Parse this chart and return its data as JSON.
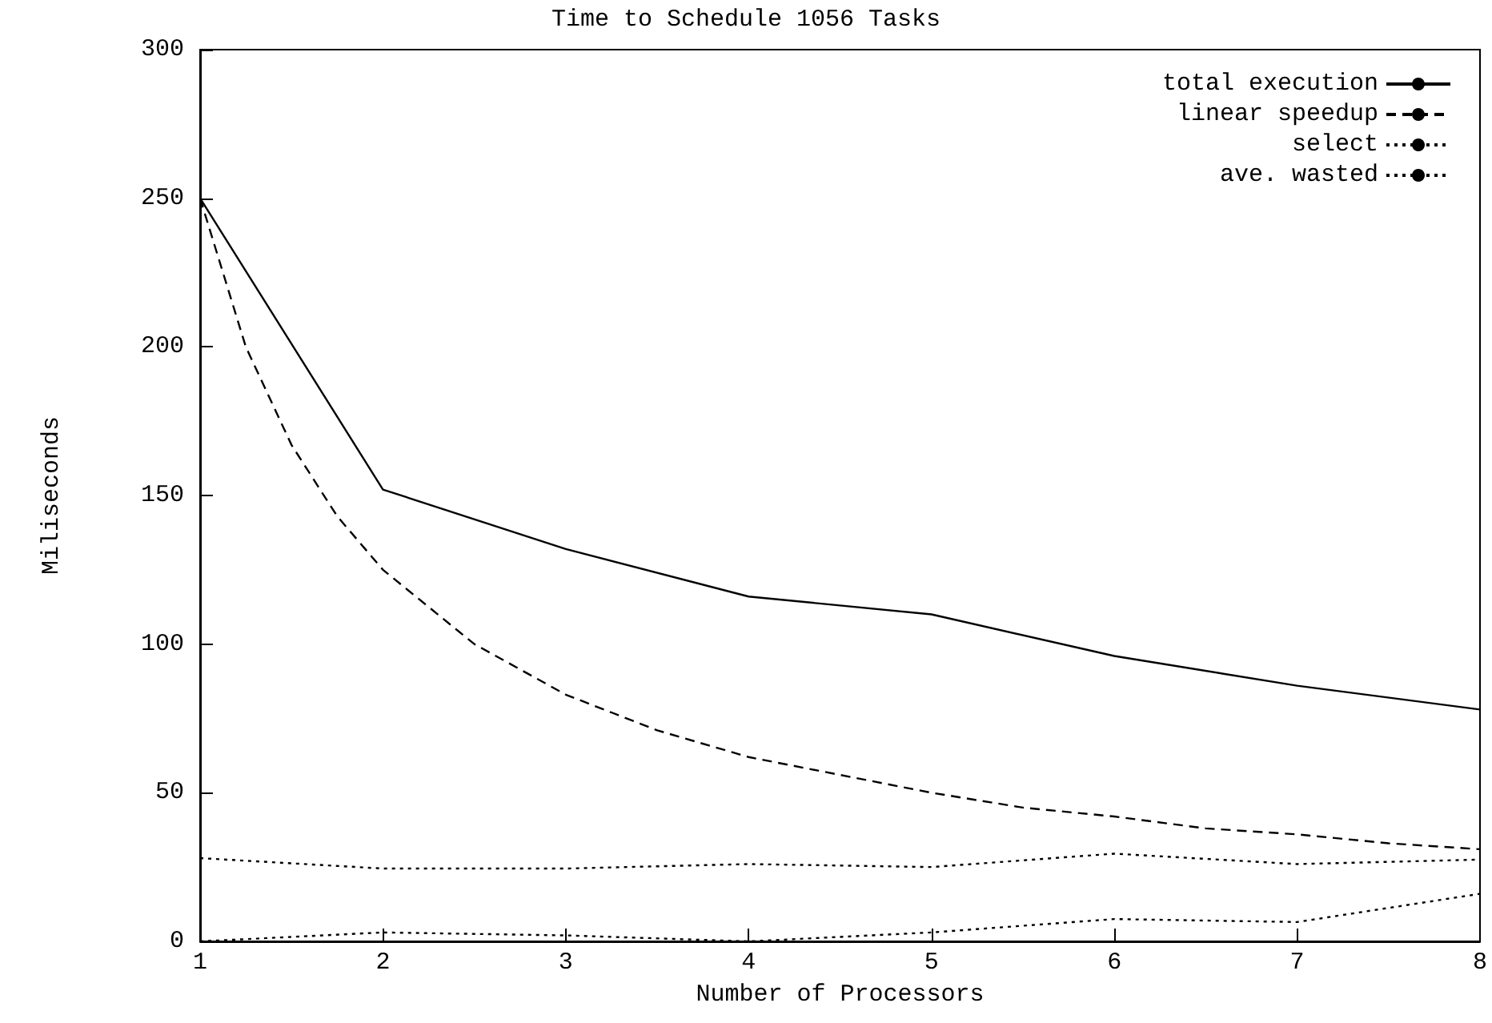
{
  "chart_data": {
    "type": "line",
    "title": "Time to Schedule 1056 Tasks",
    "xlabel": "Number of Processors",
    "ylabel": "Miliseconds",
    "x": [
      1,
      2,
      3,
      4,
      5,
      6,
      7,
      8
    ],
    "series": [
      {
        "name": "total execution",
        "color": "#000000",
        "line_style": "solid",
        "values": [
          250,
          152,
          132,
          116,
          110,
          96,
          86,
          78
        ]
      },
      {
        "name": "linear speedup",
        "color": "#000000",
        "line_style": "dashed",
        "x": [
          1,
          1.25,
          1.5,
          1.75,
          2,
          2.5,
          3,
          3.5,
          4,
          4.5,
          5,
          5.5,
          6,
          6.5,
          7,
          7.5,
          8
        ],
        "values": [
          250,
          200,
          167,
          143,
          125,
          100,
          83,
          71,
          62,
          56,
          50,
          45,
          42,
          38,
          36,
          33,
          31
        ]
      },
      {
        "name": "select",
        "color": "#000000",
        "line_style": "dotted",
        "values": [
          28,
          24.5,
          24.5,
          26,
          25,
          29.5,
          26,
          27.5
        ]
      },
      {
        "name": "ave. wasted",
        "color": "#000000",
        "line_style": "dotted",
        "values": [
          0,
          3,
          2,
          0,
          3,
          7.5,
          6.5,
          16
        ]
      }
    ],
    "xlim": [
      1,
      8
    ],
    "xticks": [
      1,
      2,
      3,
      4,
      5,
      6,
      7,
      8
    ],
    "ylim": [
      0,
      300
    ],
    "yticks": [
      0,
      50,
      100,
      150,
      200,
      250,
      300
    ],
    "grid": false,
    "legend": "top right",
    "marker": "none"
  }
}
